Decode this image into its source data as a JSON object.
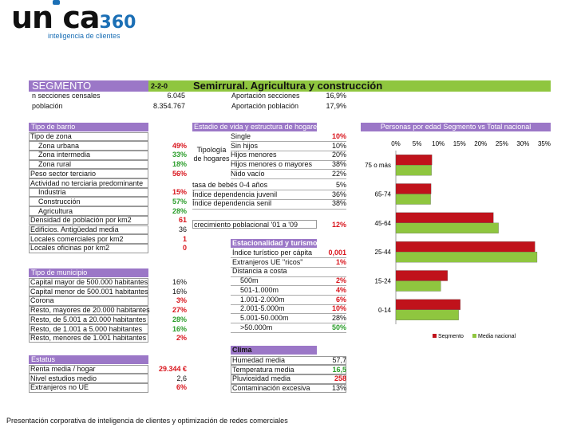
{
  "logo": {
    "word": "un ca",
    "num": "360",
    "tagline": "inteligencia de clientes"
  },
  "header": {
    "segment_label": "SEGMENTO",
    "code": "2-2-0",
    "title": "Semirrural. Agricultura y construcción"
  },
  "summary": [
    {
      "label": "n secciones censales",
      "value": "6.045",
      "label2": "Aportación secciones",
      "value2": "16,9%"
    },
    {
      "label": "población",
      "value": "8.354.767",
      "label2": "Aportación población",
      "value2": "17,9%"
    }
  ],
  "barrio": {
    "title": "Tipo de barrio",
    "rows": [
      {
        "label": "Tipo de zona",
        "value": ""
      },
      {
        "label": "Zona urbana",
        "value": "49%",
        "style": "red"
      },
      {
        "label": "Zona intermedia",
        "value": "33%",
        "style": "grn"
      },
      {
        "label": "Zona rural",
        "value": "18%",
        "style": "grn"
      },
      {
        "label": "Peso sector terciario",
        "value": "56%",
        "style": "red"
      },
      {
        "label": "Actividad no terciaria predominante",
        "value": ""
      },
      {
        "label": "Industria",
        "value": "15%",
        "style": "red"
      },
      {
        "label": "Construcción",
        "value": "57%",
        "style": "grn"
      },
      {
        "label": "Agricultura",
        "value": "28%",
        "style": "grn"
      },
      {
        "label": "Densidad de población por km2",
        "value": "61",
        "style": "red"
      },
      {
        "label": "Edificios. Antigüedad media",
        "value": "36",
        "style": ""
      },
      {
        "label": "Locales comerciales por km2",
        "value": "1",
        "style": "red"
      },
      {
        "label": "Locales oficinas por km2",
        "value": "0",
        "style": "red"
      }
    ]
  },
  "municipio": {
    "title": "Tipo de municipio",
    "rows": [
      {
        "label": "Capital mayor de 500.000 habitantes",
        "value": "16%",
        "style": ""
      },
      {
        "label": "Capital menor de 500.001 habitantes",
        "value": "16%",
        "style": ""
      },
      {
        "label": "Corona",
        "value": "3%",
        "style": "red"
      },
      {
        "label": "Resto, mayores de 20.000 habitantes",
        "value": "27%",
        "style": "red"
      },
      {
        "label": "Resto, de 5.001 a 20.000 habitantes",
        "value": "28%",
        "style": "grn"
      },
      {
        "label": "Resto, de 1.001 a 5.000 habitantes",
        "value": "16%",
        "style": "grn"
      },
      {
        "label": "Resto, menores de 1.001 habitantes",
        "value": "2%",
        "style": "red"
      }
    ]
  },
  "estatus": {
    "title": "Estatus",
    "rows": [
      {
        "label": "Renta media / hogar",
        "value": "29.344 €",
        "style": "red"
      },
      {
        "label": "Nivel estudios medio",
        "value": "2,6",
        "style": ""
      },
      {
        "label": "Extranjeros no UE",
        "value": "6%",
        "style": "red"
      }
    ]
  },
  "hogares": {
    "title": "Estadio de vida y estructura de hogares",
    "group_label": "Tipología de hogares",
    "rows": [
      {
        "label": "Single",
        "value": "10%",
        "style": "red"
      },
      {
        "label": "Sin hijos",
        "value": "10%",
        "style": ""
      },
      {
        "label": "Hijos menores",
        "value": "20%",
        "style": ""
      },
      {
        "label": "Hijos menores o mayores",
        "value": "38%",
        "style": ""
      },
      {
        "label": "Nido vacío",
        "value": "22%",
        "style": ""
      }
    ],
    "extra": [
      {
        "label": "tasa de bebés 0-4 años",
        "value": "5%",
        "style": ""
      },
      {
        "label": "Índice dependencia juvenil",
        "value": "36%",
        "style": ""
      },
      {
        "label": "Índice dependencia senil",
        "value": "38%",
        "style": ""
      }
    ],
    "growth": {
      "label": "crecimiento poblacional '01 a '09",
      "value": "12%",
      "style": "red"
    }
  },
  "turismo": {
    "title": "Estacionalidad y turismo",
    "rows": [
      {
        "label": "Índice turístico per cápita",
        "value": "0,001",
        "style": "red"
      },
      {
        "label": "Extranjeros UE \"ricos\"",
        "value": "1%",
        "style": "red"
      },
      {
        "label": "Distancia a costa",
        "value": "",
        "style": ""
      },
      {
        "label": "500m",
        "value": "2%",
        "style": "red"
      },
      {
        "label": "501-1.000m",
        "value": "4%",
        "style": "red"
      },
      {
        "label": "1.001-2.000m",
        "value": "6%",
        "style": "red"
      },
      {
        "label": "2.001-5.000m",
        "value": "10%",
        "style": "red"
      },
      {
        "label": "5.001-50.000m",
        "value": "28%",
        "style": ""
      },
      {
        "label": ">50.000m",
        "value": "50%",
        "style": "grn"
      }
    ]
  },
  "clima": {
    "title": "Clima",
    "rows": [
      {
        "label": "Humedad media",
        "value": "57,7",
        "style": ""
      },
      {
        "label": "Temperatura media",
        "value": "16,5",
        "style": "grn"
      },
      {
        "label": "Pluviosidad media",
        "value": "258",
        "style": "red"
      },
      {
        "label": "Contaminación excesiva",
        "value": "13%",
        "style": ""
      }
    ]
  },
  "colors": {
    "segment": "#c0121b",
    "national": "#8fc63f",
    "purple": "#9b77c7"
  },
  "chart_data": {
    "type": "bar",
    "orientation": "horizontal",
    "title": "Personas por edad Segmento vs Total nacional",
    "x_ticks": [
      "0%",
      "5%",
      "10%",
      "15%",
      "20%",
      "25%",
      "30%",
      "35%"
    ],
    "xlim": [
      0,
      35
    ],
    "categories": [
      "75 o más",
      "65-74",
      "45-64",
      "25-44",
      "15-24",
      "0-14"
    ],
    "series": [
      {
        "name": "Segmento",
        "values": [
          8.5,
          8.3,
          23,
          32.8,
          12.2,
          15.2
        ]
      },
      {
        "name": "Media nacional",
        "values": [
          8.4,
          8.2,
          24.2,
          33.3,
          10.6,
          14.8
        ]
      }
    ],
    "legend": [
      "Segmento",
      "Media nacional"
    ]
  },
  "footer": "Presentación corporativa de inteligencia de clientes y optimización de redes comerciales"
}
